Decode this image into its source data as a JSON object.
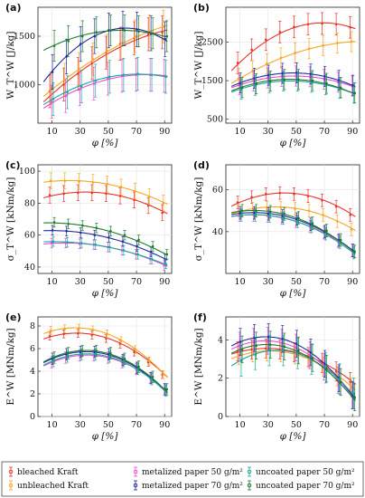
{
  "colors": {
    "bleached_kraft": "#e8322a",
    "unbleached_kraft": "#f5a623",
    "metalized_50": "#e84dd8",
    "metalized_70": "#1f2a9e",
    "uncoated_50": "#1aa7a0",
    "uncoated_70": "#1f7a2e"
  },
  "legend": [
    {
      "key": "bleached_kraft",
      "label": "bleached Kraft"
    },
    {
      "key": "metalized_50",
      "label": "metalized paper 50 g/m²"
    },
    {
      "key": "uncoated_50",
      "label": "uncoated paper 50 g/m²"
    },
    {
      "key": "unbleached_kraft",
      "label": "unbleached Kraft"
    },
    {
      "key": "metalized_70",
      "label": "metalized paper 70 g/m²"
    },
    {
      "key": "uncoated_70",
      "label": "uncoated paper 70 g/m²"
    }
  ],
  "chart_data": [
    {
      "panel": "(a)",
      "type": "scatter",
      "xlabel": "φ [%]",
      "ylabel": "W_T^W [J/kg]",
      "xlim": [
        0,
        95
      ],
      "ylim": [
        600,
        1800
      ],
      "xticks": [
        10,
        30,
        50,
        70,
        90
      ],
      "yticks": [
        1000,
        1500
      ],
      "x": [
        10,
        20,
        30,
        40,
        50,
        60,
        70,
        80,
        90
      ],
      "series": [
        {
          "key": "bleached_kraft",
          "values": [
            930,
            1000,
            1110,
            1220,
            1330,
            1420,
            1480,
            1520,
            1540
          ],
          "err": 170,
          "fit": [
            0.0,
            0.0,
            0.0
          ]
        },
        {
          "key": "unbleached_kraft",
          "values": [
            960,
            1050,
            1160,
            1260,
            1350,
            1430,
            1500,
            1550,
            1600
          ],
          "err": 170
        },
        {
          "key": "metalized_50",
          "values": [
            820,
            880,
            950,
            1010,
            1060,
            1090,
            1100,
            1100,
            1090
          ],
          "err": 170
        },
        {
          "key": "metalized_70",
          "values": [
            1130,
            1290,
            1420,
            1500,
            1560,
            1580,
            1570,
            1530,
            1470
          ],
          "err": 180
        },
        {
          "key": "uncoated_50",
          "values": [
            850,
            920,
            980,
            1040,
            1080,
            1100,
            1110,
            1100,
            1080
          ],
          "err": 170
        },
        {
          "key": "uncoated_70",
          "values": [
            1400,
            1450,
            1500,
            1540,
            1560,
            1560,
            1550,
            1530,
            1500
          ],
          "err": 160
        }
      ]
    },
    {
      "panel": "(b)",
      "type": "scatter",
      "xlabel": "φ [%]",
      "ylabel": "W_T^W [J/kg]",
      "xlim": [
        0,
        95
      ],
      "ylim": [
        400,
        3400
      ],
      "xticks": [
        10,
        30,
        50,
        70,
        90
      ],
      "yticks": [
        500,
        1500,
        2500
      ],
      "x": [
        10,
        20,
        30,
        40,
        50,
        60,
        70,
        80,
        90
      ],
      "series": [
        {
          "key": "bleached_kraft",
          "values": [
            1960,
            2300,
            2560,
            2760,
            2890,
            2960,
            2980,
            2960,
            2880
          ],
          "err": 280
        },
        {
          "key": "unbleached_kraft",
          "values": [
            1560,
            1760,
            1940,
            2090,
            2220,
            2330,
            2410,
            2470,
            2510
          ],
          "err": 260
        },
        {
          "key": "metalized_50",
          "values": [
            1390,
            1490,
            1570,
            1610,
            1620,
            1600,
            1540,
            1460,
            1360
          ],
          "err": 260
        },
        {
          "key": "metalized_70",
          "values": [
            1440,
            1560,
            1640,
            1690,
            1700,
            1670,
            1610,
            1510,
            1380
          ],
          "err": 260
        },
        {
          "key": "uncoated_50",
          "values": [
            1280,
            1380,
            1450,
            1490,
            1490,
            1460,
            1400,
            1300,
            1180
          ],
          "err": 260
        },
        {
          "key": "uncoated_70",
          "values": [
            1320,
            1420,
            1490,
            1530,
            1530,
            1500,
            1430,
            1320,
            1180
          ],
          "err": 260
        }
      ]
    },
    {
      "panel": "(c)",
      "type": "scatter",
      "xlabel": "φ [%]",
      "ylabel": "σ_T^W [kNm/kg]",
      "xlim": [
        0,
        95
      ],
      "ylim": [
        36,
        104
      ],
      "xticks": [
        10,
        30,
        50,
        70,
        90
      ],
      "yticks": [
        40,
        60,
        80,
        100
      ],
      "x": [
        10,
        20,
        30,
        40,
        50,
        60,
        70,
        80,
        90
      ],
      "series": [
        {
          "key": "bleached_kraft",
          "values": [
            85,
            86,
            86.5,
            86.5,
            86,
            84.5,
            82,
            78.5,
            74
          ],
          "err": 5
        },
        {
          "key": "unbleached_kraft",
          "values": [
            94,
            94,
            93.5,
            93,
            92,
            90,
            87.5,
            84,
            80
          ],
          "err": 5
        },
        {
          "key": "metalized_50",
          "values": [
            55,
            55,
            54.5,
            54,
            52.5,
            50.5,
            48,
            45,
            41
          ],
          "err": 3
        },
        {
          "key": "metalized_70",
          "values": [
            63,
            62.5,
            61.5,
            60,
            58.5,
            56,
            53,
            49.5,
            45
          ],
          "err": 3
        },
        {
          "key": "uncoated_50",
          "values": [
            56,
            55.5,
            55,
            54,
            52.5,
            50.5,
            48,
            45,
            42
          ],
          "err": 3
        },
        {
          "key": "uncoated_70",
          "values": [
            68,
            67,
            66,
            64.5,
            62.5,
            60,
            57,
            53,
            48
          ],
          "err": 3
        }
      ]
    },
    {
      "panel": "(d)",
      "type": "scatter",
      "xlabel": "φ [%]",
      "ylabel": "σ_T^W [kNm/kg]",
      "xlim": [
        0,
        95
      ],
      "ylim": [
        20,
        72
      ],
      "xticks": [
        10,
        30,
        50,
        70,
        90
      ],
      "yticks": [
        40,
        60
      ],
      "x": [
        10,
        20,
        30,
        40,
        50,
        60,
        70,
        80,
        90
      ],
      "series": [
        {
          "key": "bleached_kraft",
          "values": [
            54,
            56.5,
            58,
            58.5,
            58,
            57,
            55,
            52,
            48
          ],
          "err": 3
        },
        {
          "key": "unbleached_kraft",
          "values": [
            50,
            51,
            51.5,
            51.5,
            51,
            50,
            48,
            45,
            41
          ],
          "err": 3
        },
        {
          "key": "metalized_50",
          "values": [
            48,
            48,
            47.5,
            46.5,
            45,
            42.5,
            39.5,
            35.5,
            31
          ],
          "err": 3
        },
        {
          "key": "metalized_70",
          "values": [
            49,
            49,
            48.5,
            47.5,
            46,
            43.5,
            40,
            36,
            31
          ],
          "err": 3
        },
        {
          "key": "uncoated_50",
          "values": [
            48,
            48,
            47.5,
            46.5,
            45,
            42.5,
            39,
            35,
            30
          ],
          "err": 3
        },
        {
          "key": "uncoated_70",
          "values": [
            50,
            50,
            49.5,
            48.5,
            46.5,
            44,
            40.5,
            36,
            30.5
          ],
          "err": 3
        }
      ]
    },
    {
      "panel": "(e)",
      "type": "scatter",
      "xlabel": "φ [%]",
      "ylabel": "E^W [MNm/kg]",
      "xlim": [
        0,
        95
      ],
      "ylim": [
        0,
        8.8
      ],
      "xticks": [
        10,
        30,
        50,
        70,
        90
      ],
      "yticks": [
        0,
        2,
        4,
        6,
        8
      ],
      "x": [
        10,
        20,
        30,
        40,
        50,
        60,
        70,
        80,
        90
      ],
      "series": [
        {
          "key": "bleached_kraft",
          "values": [
            7.1,
            7.3,
            7.35,
            7.2,
            6.9,
            6.4,
            5.7,
            4.8,
            3.7
          ],
          "err": 0.35
        },
        {
          "key": "unbleached_kraft",
          "values": [
            7.6,
            7.75,
            7.8,
            7.65,
            7.3,
            6.7,
            5.9,
            4.9,
            3.7
          ],
          "err": 0.35
        },
        {
          "key": "metalized_50",
          "values": [
            4.8,
            5.2,
            5.4,
            5.4,
            5.2,
            4.8,
            4.2,
            3.4,
            2.4
          ],
          "err": 0.5
        },
        {
          "key": "metalized_70",
          "values": [
            5.1,
            5.5,
            5.7,
            5.7,
            5.5,
            5.0,
            4.3,
            3.4,
            2.4
          ],
          "err": 0.5
        },
        {
          "key": "uncoated_50",
          "values": [
            4.9,
            5.3,
            5.5,
            5.5,
            5.3,
            4.9,
            4.2,
            3.3,
            2.3
          ],
          "err": 0.5
        },
        {
          "key": "uncoated_70",
          "values": [
            5.2,
            5.6,
            5.8,
            5.8,
            5.6,
            5.1,
            4.4,
            3.5,
            2.4
          ],
          "err": 0.5
        }
      ]
    },
    {
      "panel": "(f)",
      "type": "scatter",
      "xlabel": "φ [%]",
      "ylabel": "E^W [MNm/kg]",
      "xlim": [
        0,
        95
      ],
      "ylim": [
        0,
        5.2
      ],
      "xticks": [
        10,
        30,
        50,
        70,
        90
      ],
      "yticks": [
        0,
        2,
        4
      ],
      "x": [
        10,
        20,
        30,
        40,
        50,
        60,
        70,
        80,
        90
      ],
      "series": [
        {
          "key": "bleached_kraft",
          "values": [
            3.4,
            3.5,
            3.55,
            3.5,
            3.35,
            3.1,
            2.8,
            2.35,
            1.8
          ],
          "err": 0.5
        },
        {
          "key": "unbleached_kraft",
          "values": [
            3.2,
            3.35,
            3.4,
            3.35,
            3.25,
            3.0,
            2.6,
            2.1,
            1.5
          ],
          "err": 0.5
        },
        {
          "key": "metalized_50",
          "values": [
            3.7,
            3.9,
            3.95,
            3.85,
            3.6,
            3.2,
            2.6,
            1.9,
            1.1
          ],
          "err": 0.7
        },
        {
          "key": "metalized_70",
          "values": [
            3.9,
            4.1,
            4.15,
            4.05,
            3.8,
            3.35,
            2.75,
            2.0,
            1.1
          ],
          "err": 0.7
        },
        {
          "key": "uncoated_50",
          "values": [
            2.9,
            3.25,
            3.45,
            3.45,
            3.3,
            3.0,
            2.55,
            1.95,
            1.2
          ],
          "err": 0.8
        },
        {
          "key": "uncoated_70",
          "values": [
            3.5,
            3.7,
            3.75,
            3.65,
            3.45,
            3.05,
            2.5,
            1.8,
            1.0
          ],
          "err": 0.7
        }
      ]
    }
  ]
}
